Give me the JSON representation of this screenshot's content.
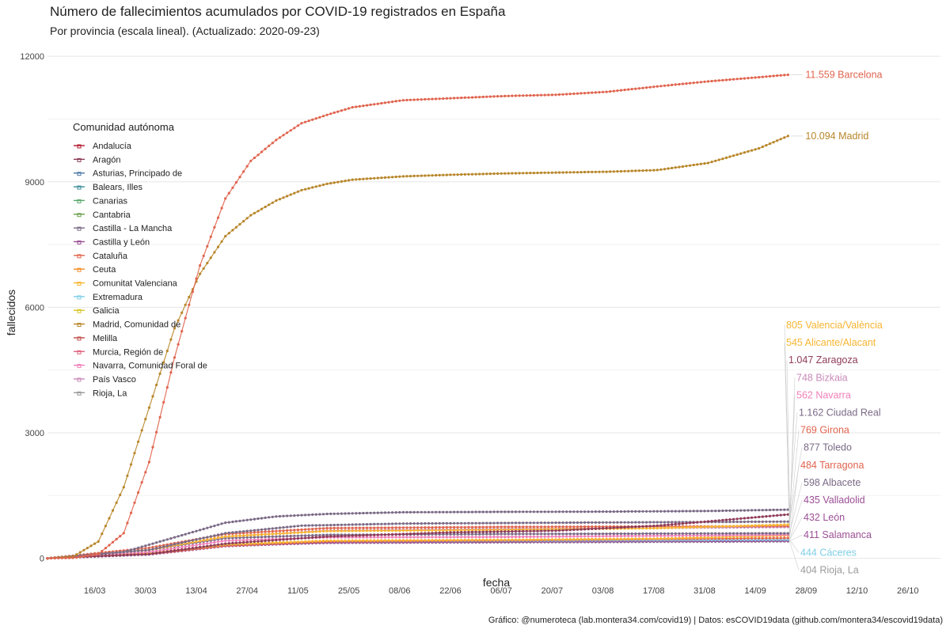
{
  "title": "Número de fallecimientos acumulados por COVID-19 registrados en España",
  "subtitle": "Por provincia (escala lineal). (Actualizado: 2020-09-23)",
  "caption": "Gráfico: @numeroteca (lab.montera34.com/covid19) | Datos: esCOVID19data (github.com/montera34/escovid19data)",
  "chart_data": {
    "type": "line",
    "title": "Número de fallecimientos acumulados por COVID-19 registrados en España",
    "subtitle": "Por provincia (escala lineal). (Actualizado: 2020-09-23)",
    "xlabel": "fecha",
    "ylabel": "fallecidos",
    "xlim": [
      "2020-03-03",
      "2020-11-04"
    ],
    "ylim": [
      -500,
      12400
    ],
    "x_ticks": [
      "2020-03-16",
      "2020-03-30",
      "2020-04-13",
      "2020-04-27",
      "2020-05-11",
      "2020-05-25",
      "2020-06-08",
      "2020-06-22",
      "2020-07-06",
      "2020-07-20",
      "2020-08-03",
      "2020-08-17",
      "2020-08-31",
      "2020-09-14",
      "2020-09-28",
      "2020-10-12",
      "2020-10-26"
    ],
    "x_tick_labels": [
      "16/03",
      "30/03",
      "13/04",
      "27/04",
      "11/05",
      "25/05",
      "08/06",
      "22/06",
      "06/07",
      "20/07",
      "03/08",
      "17/08",
      "31/08",
      "14/09",
      "28/09",
      "12/10",
      "26/10"
    ],
    "y_ticks": [
      0,
      3000,
      6000,
      9000,
      12000
    ],
    "y_tick_labels": [
      "0",
      "3000",
      "6000",
      "9000",
      "12000"
    ],
    "grid": true,
    "legend": {
      "title": "Comunidad autónoma",
      "placement": "top-left",
      "entries": [
        {
          "name": "Andalucía",
          "color": "#b2182b"
        },
        {
          "name": "Aragón",
          "color": "#8e3b5a"
        },
        {
          "name": "Asturias, Principado de",
          "color": "#4e79a7"
        },
        {
          "name": "Balears, Illes",
          "color": "#3b8d99"
        },
        {
          "name": "Canarias",
          "color": "#59a86b"
        },
        {
          "name": "Cantabria",
          "color": "#6a9f4b"
        },
        {
          "name": "Castilla - La Mancha",
          "color": "#7a6a86"
        },
        {
          "name": "Castilla y León",
          "color": "#9b4f96"
        },
        {
          "name": "Cataluña",
          "color": "#e0644e"
        },
        {
          "name": "Ceuta",
          "color": "#f28e2b"
        },
        {
          "name": "Comunitat Valenciana",
          "color": "#f7b531"
        },
        {
          "name": "Extremadura",
          "color": "#7fcfe6"
        },
        {
          "name": "Galicia",
          "color": "#d8c62a"
        },
        {
          "name": "Madrid, Comunidad de",
          "color": "#b8862a"
        },
        {
          "name": "Melilla",
          "color": "#c0504d"
        },
        {
          "name": "Murcia, Región de",
          "color": "#e0607e"
        },
        {
          "name": "Navarra, Comunidad Foral de",
          "color": "#f07fb8"
        },
        {
          "name": "País Vasco",
          "color": "#c98bb9"
        },
        {
          "name": "Rioja, La",
          "color": "#9a9a9a"
        }
      ]
    },
    "series": [
      {
        "name": "Barcelona",
        "color": "#e0644e",
        "points": [
          [
            "2020-03-03",
            0
          ],
          [
            "2020-03-10",
            10
          ],
          [
            "2020-03-17",
            100
          ],
          [
            "2020-03-24",
            600
          ],
          [
            "2020-03-31",
            2300
          ],
          [
            "2020-04-07",
            4800
          ],
          [
            "2020-04-14",
            7000
          ],
          [
            "2020-04-21",
            8600
          ],
          [
            "2020-04-28",
            9500
          ],
          [
            "2020-05-05",
            10000
          ],
          [
            "2020-05-12",
            10400
          ],
          [
            "2020-05-19",
            10600
          ],
          [
            "2020-05-26",
            10780
          ],
          [
            "2020-06-09",
            10950
          ],
          [
            "2020-06-23",
            11000
          ],
          [
            "2020-07-07",
            11050
          ],
          [
            "2020-07-21",
            11080
          ],
          [
            "2020-08-04",
            11150
          ],
          [
            "2020-08-18",
            11280
          ],
          [
            "2020-09-01",
            11400
          ],
          [
            "2020-09-15",
            11500
          ],
          [
            "2020-09-23",
            11559
          ]
        ]
      },
      {
        "name": "Madrid",
        "color": "#b8862a",
        "points": [
          [
            "2020-03-03",
            0
          ],
          [
            "2020-03-10",
            40
          ],
          [
            "2020-03-17",
            400
          ],
          [
            "2020-03-24",
            1700
          ],
          [
            "2020-03-31",
            3600
          ],
          [
            "2020-04-07",
            5500
          ],
          [
            "2020-04-14",
            6800
          ],
          [
            "2020-04-21",
            7700
          ],
          [
            "2020-04-28",
            8200
          ],
          [
            "2020-05-05",
            8550
          ],
          [
            "2020-05-12",
            8800
          ],
          [
            "2020-05-19",
            8950
          ],
          [
            "2020-05-26",
            9050
          ],
          [
            "2020-06-09",
            9130
          ],
          [
            "2020-06-23",
            9170
          ],
          [
            "2020-07-07",
            9200
          ],
          [
            "2020-07-21",
            9220
          ],
          [
            "2020-08-04",
            9240
          ],
          [
            "2020-08-18",
            9280
          ],
          [
            "2020-09-01",
            9450
          ],
          [
            "2020-09-15",
            9800
          ],
          [
            "2020-09-23",
            10094
          ]
        ]
      },
      {
        "name": "Ciudad Real",
        "color": "#7a6a86",
        "points": [
          [
            "2020-03-03",
            0
          ],
          [
            "2020-03-24",
            150
          ],
          [
            "2020-04-07",
            500
          ],
          [
            "2020-04-21",
            850
          ],
          [
            "2020-05-05",
            1000
          ],
          [
            "2020-05-19",
            1060
          ],
          [
            "2020-06-09",
            1100
          ],
          [
            "2020-07-07",
            1110
          ],
          [
            "2020-08-04",
            1115
          ],
          [
            "2020-09-01",
            1130
          ],
          [
            "2020-09-23",
            1162
          ]
        ]
      },
      {
        "name": "Zaragoza",
        "color": "#8e3b5a",
        "points": [
          [
            "2020-03-03",
            0
          ],
          [
            "2020-03-31",
            100
          ],
          [
            "2020-04-21",
            350
          ],
          [
            "2020-05-19",
            520
          ],
          [
            "2020-06-23",
            620
          ],
          [
            "2020-07-21",
            660
          ],
          [
            "2020-08-18",
            780
          ],
          [
            "2020-09-01",
            880
          ],
          [
            "2020-09-23",
            1047
          ]
        ]
      },
      {
        "name": "Toledo",
        "color": "#7a6a86",
        "points": [
          [
            "2020-03-03",
            0
          ],
          [
            "2020-03-31",
            200
          ],
          [
            "2020-04-21",
            600
          ],
          [
            "2020-05-12",
            780
          ],
          [
            "2020-06-09",
            830
          ],
          [
            "2020-07-21",
            850
          ],
          [
            "2020-09-23",
            877
          ]
        ]
      },
      {
        "name": "Valencia/València",
        "color": "#f7b531",
        "points": [
          [
            "2020-03-03",
            0
          ],
          [
            "2020-03-31",
            200
          ],
          [
            "2020-04-21",
            520
          ],
          [
            "2020-05-19",
            650
          ],
          [
            "2020-07-07",
            680
          ],
          [
            "2020-08-18",
            720
          ],
          [
            "2020-09-23",
            805
          ]
        ]
      },
      {
        "name": "Girona",
        "color": "#e0644e",
        "points": [
          [
            "2020-03-03",
            0
          ],
          [
            "2020-03-31",
            250
          ],
          [
            "2020-04-21",
            580
          ],
          [
            "2020-05-19",
            720
          ],
          [
            "2020-07-07",
            750
          ],
          [
            "2020-09-23",
            769
          ]
        ]
      },
      {
        "name": "Bizkaia",
        "color": "#c98bb9",
        "points": [
          [
            "2020-03-03",
            0
          ],
          [
            "2020-03-31",
            200
          ],
          [
            "2020-04-21",
            520
          ],
          [
            "2020-05-19",
            660
          ],
          [
            "2020-07-07",
            700
          ],
          [
            "2020-09-23",
            748
          ]
        ]
      },
      {
        "name": "Albacete",
        "color": "#7a6a86",
        "points": [
          [
            "2020-03-03",
            0
          ],
          [
            "2020-03-31",
            200
          ],
          [
            "2020-04-21",
            480
          ],
          [
            "2020-05-19",
            560
          ],
          [
            "2020-07-07",
            580
          ],
          [
            "2020-09-23",
            598
          ]
        ]
      },
      {
        "name": "Navarra",
        "color": "#f07fb8",
        "points": [
          [
            "2020-03-03",
            0
          ],
          [
            "2020-03-31",
            150
          ],
          [
            "2020-04-21",
            420
          ],
          [
            "2020-05-19",
            500
          ],
          [
            "2020-07-07",
            510
          ],
          [
            "2020-09-23",
            562
          ]
        ]
      },
      {
        "name": "Alicante/Alacant",
        "color": "#f7b531",
        "points": [
          [
            "2020-03-03",
            0
          ],
          [
            "2020-03-31",
            120
          ],
          [
            "2020-04-21",
            330
          ],
          [
            "2020-05-19",
            420
          ],
          [
            "2020-07-07",
            440
          ],
          [
            "2020-08-18",
            470
          ],
          [
            "2020-09-23",
            545
          ]
        ]
      },
      {
        "name": "Tarragona",
        "color": "#e0644e",
        "points": [
          [
            "2020-03-03",
            0
          ],
          [
            "2020-03-31",
            100
          ],
          [
            "2020-04-21",
            300
          ],
          [
            "2020-05-19",
            400
          ],
          [
            "2020-07-07",
            430
          ],
          [
            "2020-09-23",
            484
          ]
        ]
      },
      {
        "name": "Cáceres",
        "color": "#7fcfe6",
        "points": [
          [
            "2020-03-03",
            0
          ],
          [
            "2020-03-31",
            100
          ],
          [
            "2020-04-21",
            320
          ],
          [
            "2020-05-19",
            400
          ],
          [
            "2020-07-07",
            420
          ],
          [
            "2020-09-23",
            444
          ]
        ]
      },
      {
        "name": "Valladolid",
        "color": "#9b4f96",
        "points": [
          [
            "2020-03-03",
            0
          ],
          [
            "2020-03-31",
            100
          ],
          [
            "2020-04-21",
            300
          ],
          [
            "2020-05-19",
            390
          ],
          [
            "2020-07-07",
            410
          ],
          [
            "2020-09-23",
            435
          ]
        ]
      },
      {
        "name": "León",
        "color": "#9b4f96",
        "points": [
          [
            "2020-03-03",
            0
          ],
          [
            "2020-03-31",
            90
          ],
          [
            "2020-04-21",
            290
          ],
          [
            "2020-05-19",
            380
          ],
          [
            "2020-07-07",
            405
          ],
          [
            "2020-09-23",
            432
          ]
        ]
      },
      {
        "name": "Salamanca",
        "color": "#9b4f96",
        "points": [
          [
            "2020-03-03",
            0
          ],
          [
            "2020-03-31",
            100
          ],
          [
            "2020-04-21",
            300
          ],
          [
            "2020-05-19",
            370
          ],
          [
            "2020-07-07",
            390
          ],
          [
            "2020-09-23",
            411
          ]
        ]
      },
      {
        "name": "Rioja, La",
        "color": "#9a9a9a",
        "points": [
          [
            "2020-03-03",
            0
          ],
          [
            "2020-03-31",
            120
          ],
          [
            "2020-04-21",
            320
          ],
          [
            "2020-05-19",
            370
          ],
          [
            "2020-07-07",
            380
          ],
          [
            "2020-09-23",
            404
          ]
        ]
      }
    ],
    "end_labels": [
      {
        "text": "11.559 Barcelona",
        "series": "Barcelona",
        "color": "#e0644e"
      },
      {
        "text": "10.094 Madrid",
        "series": "Madrid",
        "color": "#b8862a"
      },
      {
        "text": "805 Valencia/València",
        "series": "Valencia/València",
        "color": "#f7b531"
      },
      {
        "text": "545 Alicante/Alacant",
        "series": "Alicante/Alacant",
        "color": "#f7b531"
      },
      {
        "text": "1.047 Zaragoza",
        "series": "Zaragoza",
        "color": "#8e3b5a"
      },
      {
        "text": "748 Bizkaia",
        "series": "Bizkaia",
        "color": "#c98bb9"
      },
      {
        "text": "562 Navarra",
        "series": "Navarra",
        "color": "#f07fb8"
      },
      {
        "text": "1.162 Ciudad Real",
        "series": "Ciudad Real",
        "color": "#7a6a86"
      },
      {
        "text": "769 Girona",
        "series": "Girona",
        "color": "#e0644e"
      },
      {
        "text": "877 Toledo",
        "series": "Toledo",
        "color": "#7a6a86"
      },
      {
        "text": "484 Tarragona",
        "series": "Tarragona",
        "color": "#e0644e"
      },
      {
        "text": "598 Albacete",
        "series": "Albacete",
        "color": "#7a6a86"
      },
      {
        "text": "435 Valladolid",
        "series": "Valladolid",
        "color": "#9b4f96"
      },
      {
        "text": "432 León",
        "series": "León",
        "color": "#9b4f96"
      },
      {
        "text": "411 Salamanca",
        "series": "Salamanca",
        "color": "#9b4f96"
      },
      {
        "text": "444 Cáceres",
        "series": "Cáceres",
        "color": "#7fcfe6"
      },
      {
        "text": "404 Rioja, La",
        "series": "Rioja, La",
        "color": "#9a9a9a"
      }
    ]
  }
}
